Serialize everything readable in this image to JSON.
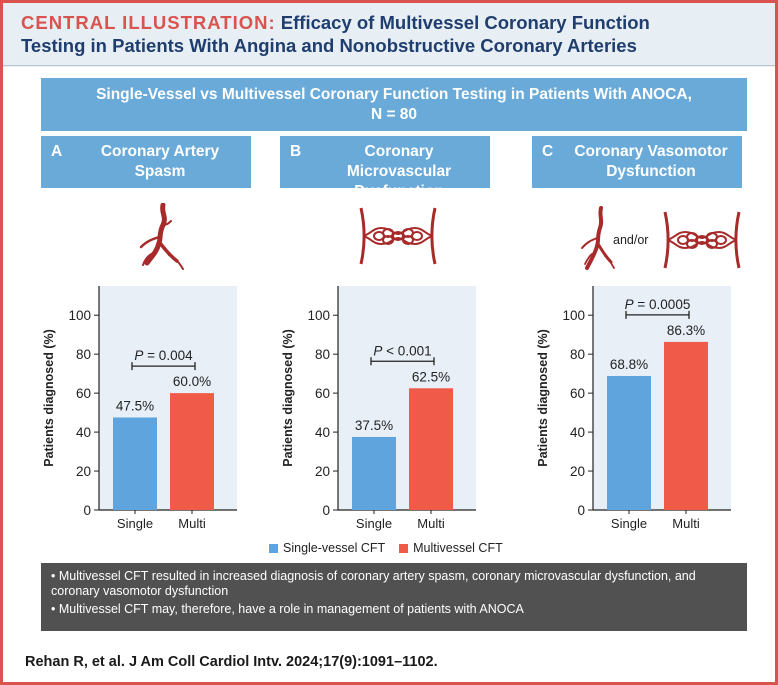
{
  "header": {
    "label": "CENTRAL ILLUSTRATION:",
    "title_line1": "Efficacy of Multivessel Coronary Function",
    "title_line2": "Testing in Patients With Angina and Nonobstructive Coronary Arteries"
  },
  "banner": {
    "line1": "Single-Vessel vs Multivessel Coronary Function Testing in Patients With ANOCA,",
    "line2": "N = 80"
  },
  "panels": [
    {
      "letter": "A",
      "title_line1": "Coronary Artery",
      "title_line2": "Spasm",
      "icon": "artery-spasm-icon"
    },
    {
      "letter": "B",
      "title_line1": "Coronary Microvascular",
      "title_line2": "Dysfunction",
      "icon": "microvasculature-icon"
    },
    {
      "letter": "C",
      "title_line1": "Coronary Vasomotor",
      "title_line2": "Dysfunction",
      "icon": "combined-vessel-icon",
      "icon_text": "and/or"
    }
  ],
  "chart_data": [
    {
      "type": "bar",
      "panel": "A",
      "categories": [
        "Single",
        "Multi"
      ],
      "values": [
        47.5,
        60.0
      ],
      "value_labels": [
        "47.5%",
        "60.0%"
      ],
      "ylabel": "Patients diagnosed (%)",
      "ylim": [
        0,
        115
      ],
      "yticks": [
        0,
        20,
        40,
        60,
        80,
        100
      ],
      "p_label": "P",
      "p_text": " = 0.004",
      "colors": [
        "#5fa4dc",
        "#ef5b48"
      ]
    },
    {
      "type": "bar",
      "panel": "B",
      "categories": [
        "Single",
        "Multi"
      ],
      "values": [
        37.5,
        62.5
      ],
      "value_labels": [
        "37.5%",
        "62.5%"
      ],
      "ylabel": "Patients diagnosed (%)",
      "ylim": [
        0,
        115
      ],
      "yticks": [
        0,
        20,
        40,
        60,
        80,
        100
      ],
      "p_label": "P",
      "p_text": " < 0.001",
      "colors": [
        "#5fa4dc",
        "#ef5b48"
      ]
    },
    {
      "type": "bar",
      "panel": "C",
      "categories": [
        "Single",
        "Multi"
      ],
      "values": [
        68.8,
        86.3
      ],
      "value_labels": [
        "68.8%",
        "86.3%"
      ],
      "ylabel": "Patients diagnosed (%)",
      "ylim": [
        0,
        115
      ],
      "yticks": [
        0,
        20,
        40,
        60,
        80,
        100
      ],
      "p_label": "P",
      "p_text": " = 0.0005",
      "colors": [
        "#5fa4dc",
        "#ef5b48"
      ]
    }
  ],
  "legend": [
    {
      "label": "Single-vessel CFT",
      "color": "#5fa4dc"
    },
    {
      "label": "Multivessel CFT",
      "color": "#ef5b48"
    }
  ],
  "summary": {
    "bullet1": "• Multivessel CFT resulted in increased diagnosis of coronary artery spasm, coronary microvascular dysfunction, and coronary vasomotor dysfunction",
    "bullet2": "• Multivessel CFT may, therefore, have a role in management of patients with ANOCA"
  },
  "citation": "Rehan R, et al. J Am Coll Cardiol Intv. 2024;17(9):1091–1102."
}
